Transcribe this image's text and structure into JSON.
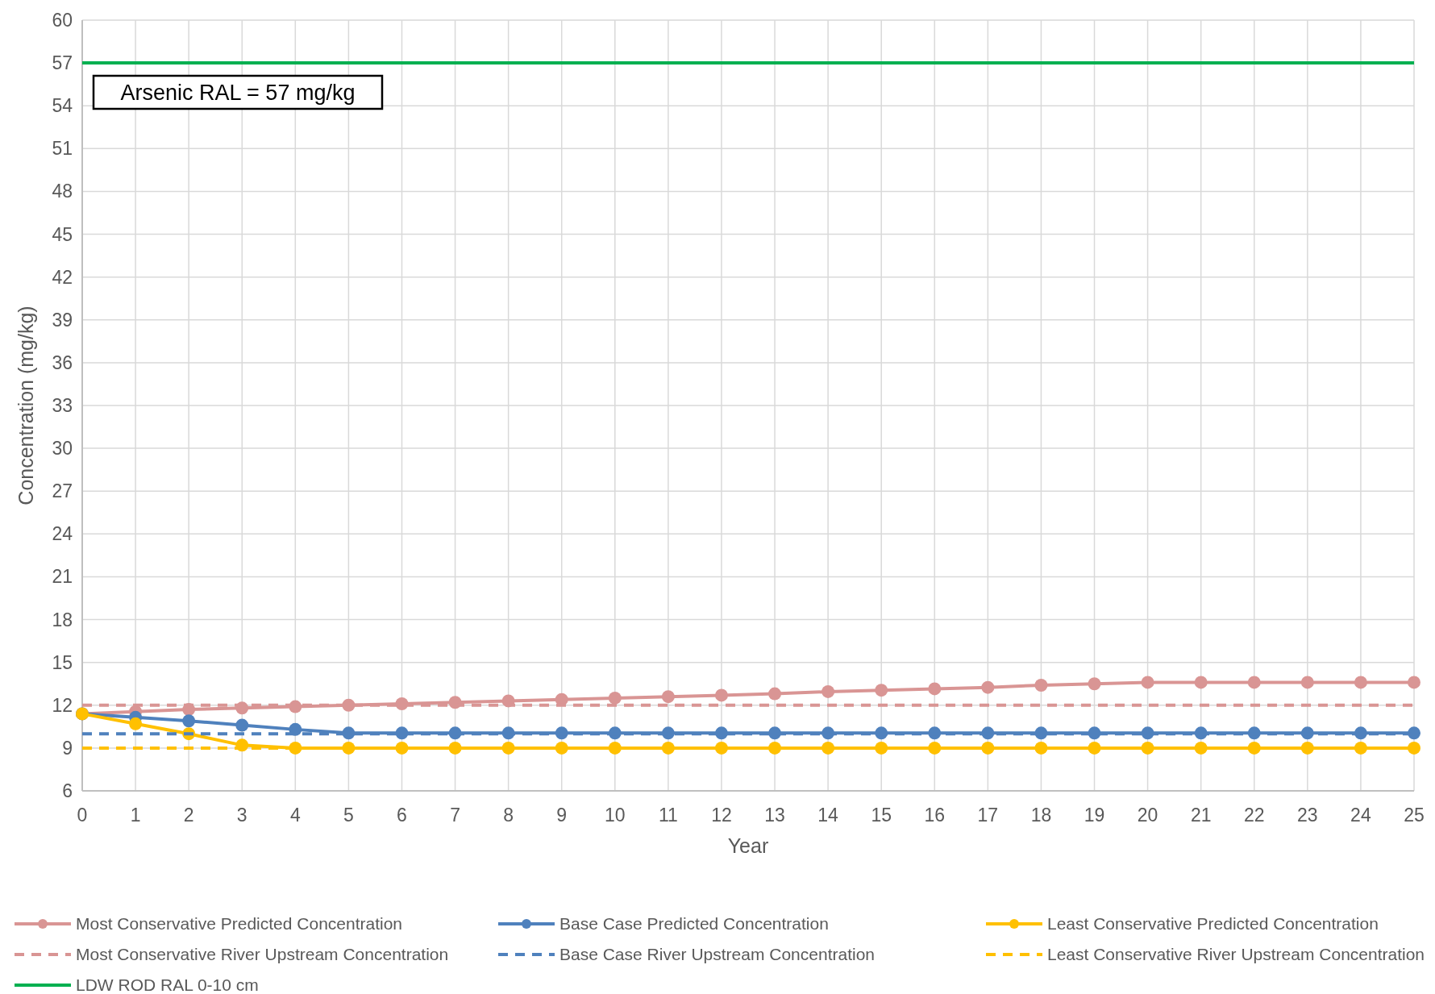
{
  "chart_data": {
    "type": "line",
    "xlabel": "Year",
    "ylabel": "Concentration (mg/kg)",
    "x": [
      0,
      1,
      2,
      3,
      4,
      5,
      6,
      7,
      8,
      9,
      10,
      11,
      12,
      13,
      14,
      15,
      16,
      17,
      18,
      19,
      20,
      21,
      22,
      23,
      24,
      25
    ],
    "xlim": [
      0,
      25
    ],
    "xticks": [
      0,
      1,
      2,
      3,
      4,
      5,
      6,
      7,
      8,
      9,
      10,
      11,
      12,
      13,
      14,
      15,
      16,
      17,
      18,
      19,
      20,
      21,
      22,
      23,
      24,
      25
    ],
    "ylim": [
      6,
      60
    ],
    "yticks": [
      6,
      9,
      12,
      15,
      18,
      21,
      24,
      27,
      30,
      33,
      36,
      39,
      42,
      45,
      48,
      51,
      54,
      57,
      60
    ],
    "grid": true,
    "legend": "bottom",
    "series": [
      {
        "name": "Most Conservative Predicted Concentration",
        "color": "#d99594",
        "marker": "circle",
        "line_style": "solid",
        "values": [
          11.4,
          11.55,
          11.7,
          11.8,
          11.9,
          12.0,
          12.1,
          12.2,
          12.3,
          12.4,
          12.5,
          12.6,
          12.7,
          12.8,
          12.95,
          13.05,
          13.15,
          13.25,
          13.4,
          13.5,
          13.6,
          13.6,
          13.6,
          13.6,
          13.6,
          13.6
        ]
      },
      {
        "name": "Base Case Predicted Concentration",
        "color": "#4f81bd",
        "marker": "circle",
        "line_style": "solid",
        "values": [
          11.4,
          11.15,
          10.9,
          10.6,
          10.3,
          10.05,
          10.05,
          10.05,
          10.05,
          10.05,
          10.05,
          10.05,
          10.05,
          10.05,
          10.05,
          10.05,
          10.05,
          10.05,
          10.05,
          10.05,
          10.05,
          10.05,
          10.05,
          10.05,
          10.05,
          10.05
        ]
      },
      {
        "name": "Least Conservative Predicted Concentration",
        "color": "#ffc000",
        "marker": "circle",
        "line_style": "solid",
        "values": [
          11.4,
          10.7,
          10.0,
          9.2,
          9.0,
          9.0,
          9.0,
          9.0,
          9.0,
          9.0,
          9.0,
          9.0,
          9.0,
          9.0,
          9.0,
          9.0,
          9.0,
          9.0,
          9.0,
          9.0,
          9.0,
          9.0,
          9.0,
          9.0,
          9.0,
          9.0
        ]
      },
      {
        "name": "Most Conservative River Upstream Concentration",
        "color": "#d99594",
        "marker": "none",
        "line_style": "dashed",
        "values": [
          12,
          12,
          12,
          12,
          12,
          12,
          12,
          12,
          12,
          12,
          12,
          12,
          12,
          12,
          12,
          12,
          12,
          12,
          12,
          12,
          12,
          12,
          12,
          12,
          12,
          12
        ]
      },
      {
        "name": "Base Case River Upstream Concentration",
        "color": "#4f81bd",
        "marker": "none",
        "line_style": "dashed",
        "values": [
          10,
          10,
          10,
          10,
          10,
          10,
          10,
          10,
          10,
          10,
          10,
          10,
          10,
          10,
          10,
          10,
          10,
          10,
          10,
          10,
          10,
          10,
          10,
          10,
          10,
          10
        ]
      },
      {
        "name": "Least Conservative River Upstream Concentration",
        "color": "#ffc000",
        "marker": "none",
        "line_style": "dashed",
        "values": [
          9,
          9,
          9,
          9,
          9,
          null,
          null,
          null,
          null,
          null,
          null,
          null,
          null,
          null,
          null,
          null,
          null,
          null,
          null,
          null,
          null,
          null,
          null,
          null,
          null,
          null
        ]
      },
      {
        "name": "LDW ROD RAL 0-10 cm",
        "color": "#00b050",
        "marker": "none",
        "line_style": "solid",
        "values": [
          57,
          57,
          57,
          57,
          57,
          57,
          57,
          57,
          57,
          57,
          57,
          57,
          57,
          57,
          57,
          57,
          57,
          57,
          57,
          57,
          57,
          57,
          57,
          57,
          57,
          57
        ]
      }
    ],
    "annotations": [
      "Arsenic RAL = 57 mg/kg"
    ]
  }
}
